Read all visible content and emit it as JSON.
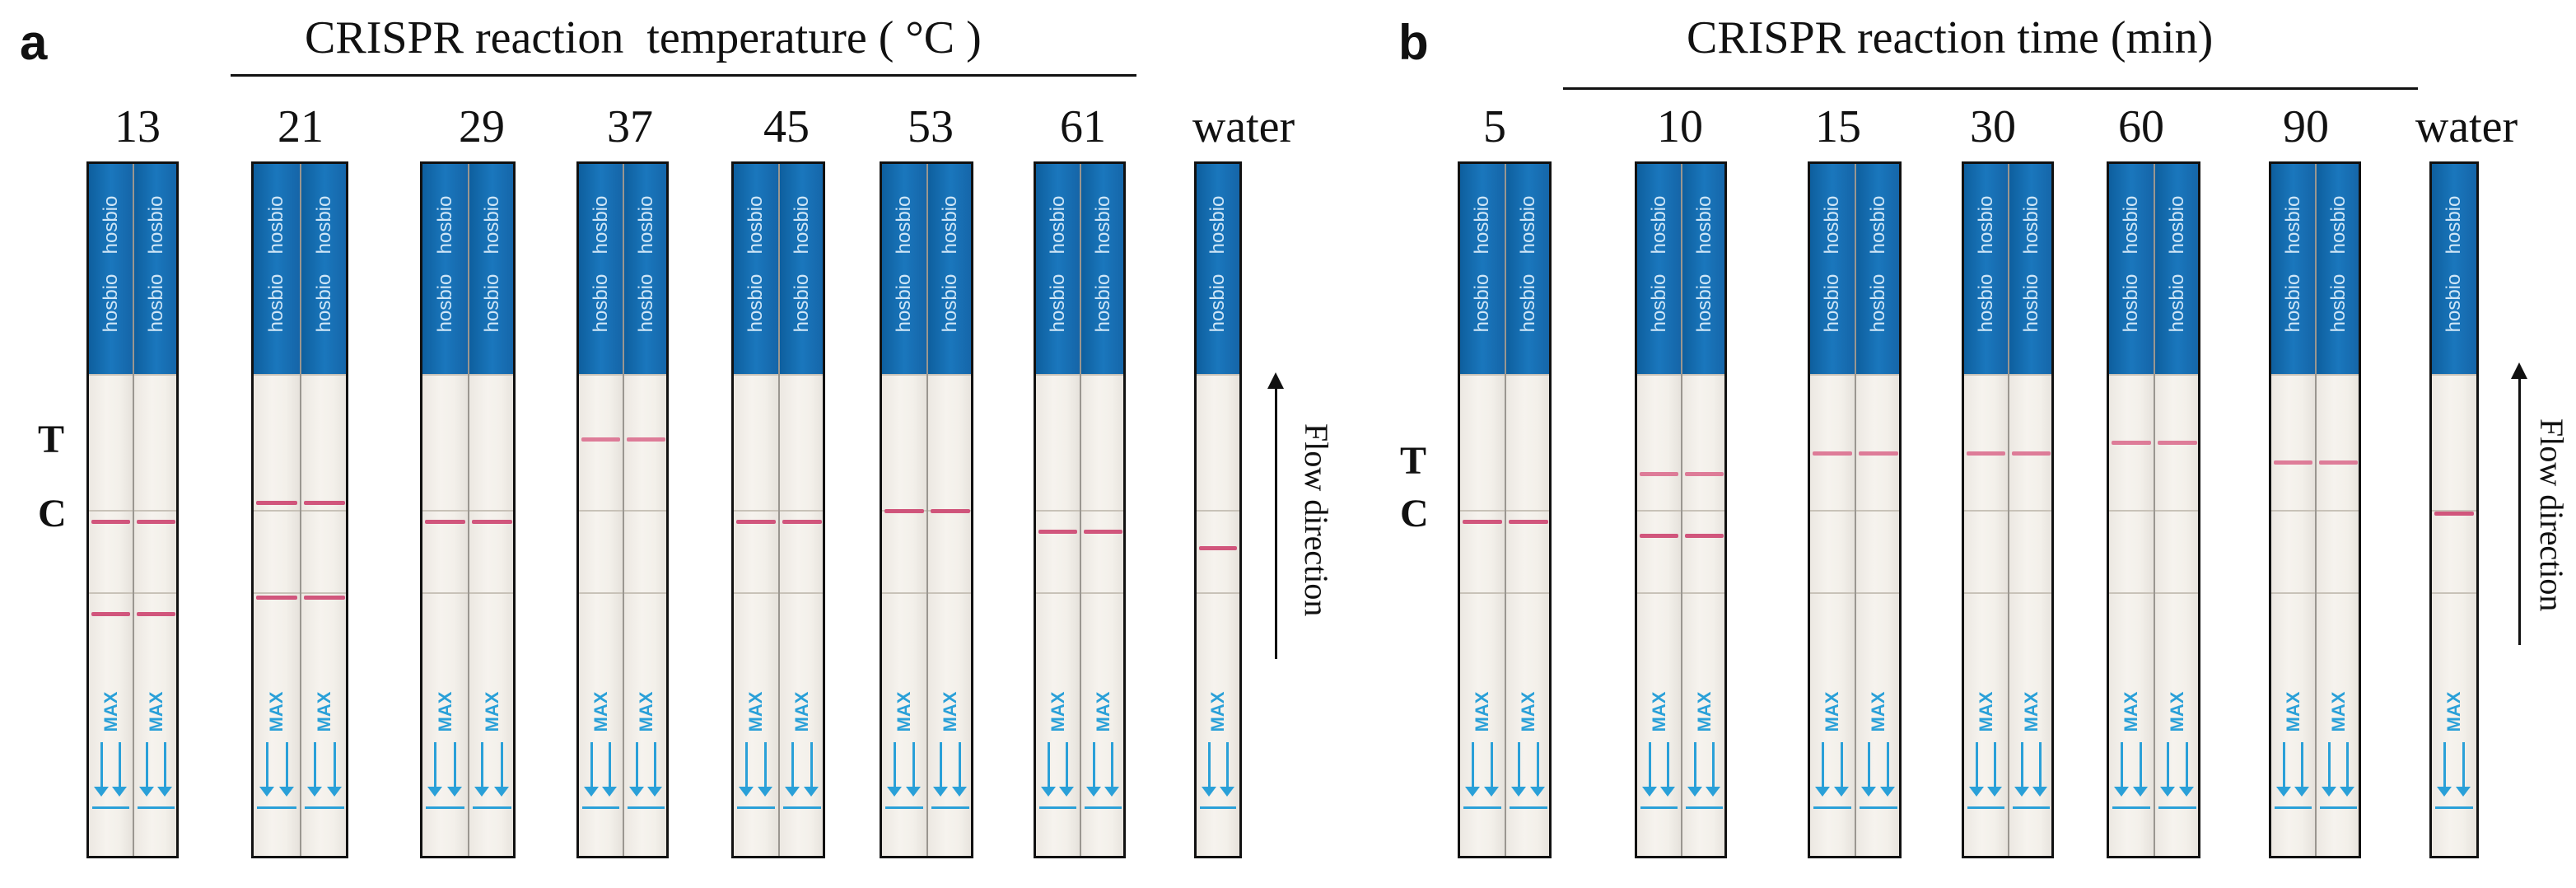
{
  "panel_a": {
    "letter": "a",
    "title": "CRISPR reaction  temperature ( °C )",
    "labels": [
      "13",
      "21",
      "29",
      "37",
      "45",
      "53",
      "61",
      "water"
    ],
    "tc": {
      "t": "T",
      "c": "C"
    },
    "flow": "Flow direction"
  },
  "panel_b": {
    "letter": "b",
    "title": "CRISPR reaction time (min)",
    "labels": [
      "5",
      "10",
      "15",
      "30",
      "60",
      "90",
      "water"
    ],
    "tc": {
      "t": "T",
      "c": "C"
    },
    "flow": "Flow direction"
  },
  "strip_text": {
    "brand": "hosbio",
    "max": "MAX"
  },
  "colors": {
    "strip_blue": "#1a77bd",
    "line_red": "#cf4d76",
    "arrow_cyan": "#2aa0d8"
  }
}
